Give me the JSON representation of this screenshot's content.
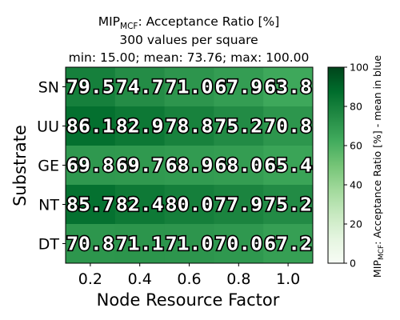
{
  "chart_data": {
    "type": "heatmap",
    "title": {
      "main_prefix": "MIP",
      "main_subscript": "MCF",
      "main_suffix": ": Acceptance Ratio [%]",
      "line2": "300 values per square",
      "line3": "min: 15.00; mean: 73.76; max: 100.00"
    },
    "xlabel": "Node Resource Factor",
    "ylabel": "Substrate",
    "x_categories": [
      "0.2",
      "0.4",
      "0.6",
      "0.8",
      "1.0"
    ],
    "y_categories": [
      "SN",
      "UU",
      "GE",
      "NT",
      "DT"
    ],
    "values": [
      [
        79.5,
        74.7,
        71.0,
        67.9,
        63.8
      ],
      [
        86.1,
        82.9,
        78.8,
        75.2,
        70.8
      ],
      [
        69.8,
        69.7,
        68.9,
        68.0,
        65.4
      ],
      [
        85.7,
        82.4,
        80.0,
        77.9,
        75.2
      ],
      [
        70.8,
        71.1,
        71.0,
        70.0,
        67.2
      ]
    ],
    "cell_labels": [
      [
        "79.5",
        "74.7",
        "71.0",
        "67.9",
        "63.8"
      ],
      [
        "86.1",
        "82.9",
        "78.8",
        "75.2",
        "70.8"
      ],
      [
        "69.8",
        "69.7",
        "68.9",
        "68.0",
        "65.4"
      ],
      [
        "85.7",
        "82.4",
        "80.0",
        "77.9",
        "75.2"
      ],
      [
        "70.8",
        "71.1",
        "71.0",
        "70.0",
        "67.2"
      ]
    ],
    "colorbar": {
      "range": [
        0,
        100
      ],
      "ticks": [
        "0",
        "20",
        "40",
        "60",
        "80",
        "100"
      ],
      "label_prefix": "MIP",
      "label_subscript": "MCF",
      "label_suffix": ": Acceptance Ratio [%] - mean in blue",
      "colormap": "Greens"
    },
    "grid": false
  }
}
